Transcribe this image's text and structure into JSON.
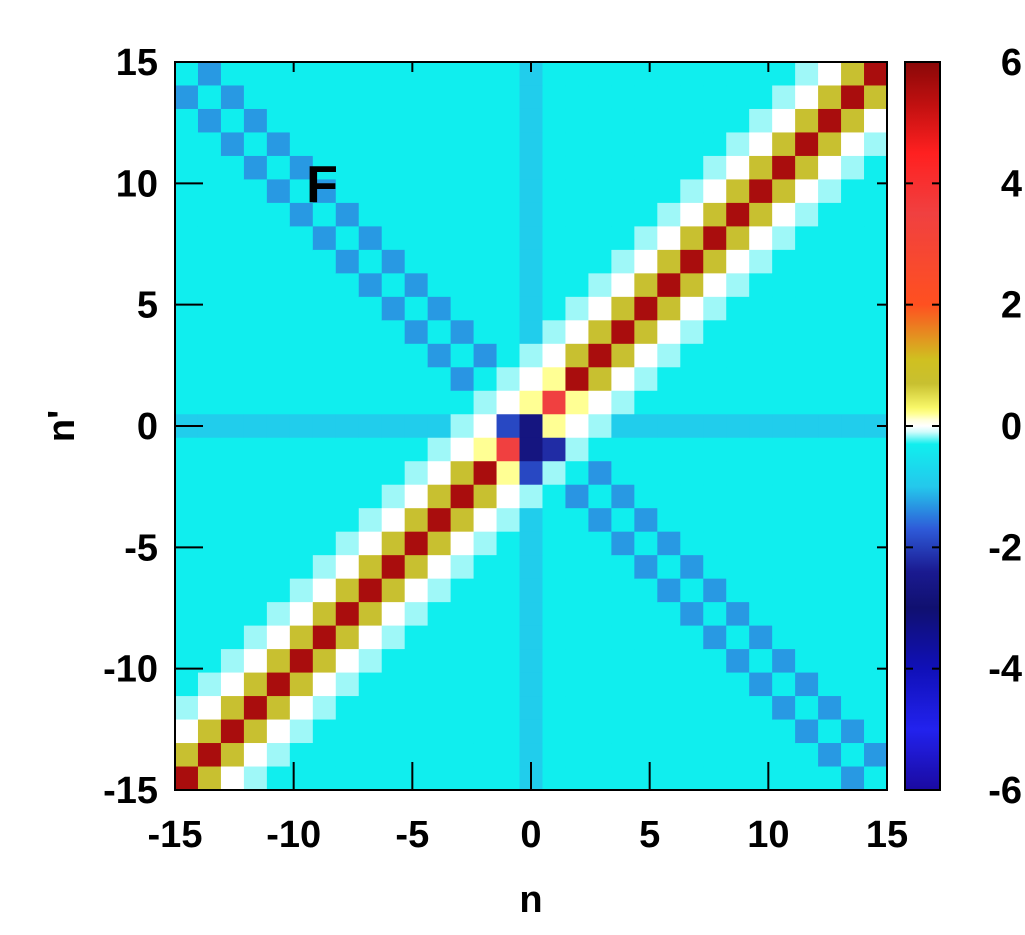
{
  "chart_data": {
    "type": "heatmap",
    "panel_label": "F",
    "xlabel": "n",
    "ylabel": "n'",
    "xlim": [
      -15,
      15
    ],
    "ylim": [
      -15,
      15
    ],
    "x_ticks": [
      "-15",
      "-10",
      "-5",
      "0",
      "5",
      "10",
      "15"
    ],
    "y_ticks": [
      "15",
      "10",
      "5",
      "0",
      "-5",
      "-10",
      "-15"
    ],
    "colorbar": {
      "range": [
        -6,
        6
      ],
      "ticks": [
        "6",
        "4",
        "2",
        "0",
        "-2",
        "-4",
        "-6"
      ],
      "stops": [
        {
          "v": -6,
          "color": "#1a0aa0"
        },
        {
          "v": -5,
          "color": "#2222ee"
        },
        {
          "v": -4,
          "color": "#1010b8"
        },
        {
          "v": -3,
          "color": "#101070"
        },
        {
          "v": -2.4,
          "color": "#1a1a90"
        },
        {
          "v": -1.7,
          "color": "#2e5ad8"
        },
        {
          "v": -1.0,
          "color": "#24c8ec"
        },
        {
          "v": -0.3,
          "color": "#10eeee"
        },
        {
          "v": -0.05,
          "color": "#ffffff"
        },
        {
          "v": 0.05,
          "color": "#ffffff"
        },
        {
          "v": 0.25,
          "color": "#ffff70"
        },
        {
          "v": 0.7,
          "color": "#c8c030"
        },
        {
          "v": 1.1,
          "color": "#d0c020"
        },
        {
          "v": 2,
          "color": "#ff5020"
        },
        {
          "v": 3.5,
          "color": "#f04040"
        },
        {
          "v": 4.5,
          "color": "#ff2020"
        },
        {
          "v": 5.3,
          "color": "#c01010"
        },
        {
          "v": 6,
          "color": "#8a0808"
        }
      ]
    },
    "value_rules": {
      "background": -0.3,
      "axis_line_value": -0.9,
      "main_diagonal_value_near_origin": 3.5,
      "main_diagonal_value_far": 5.6,
      "adjacent_diagonal_value": 0.7,
      "second_diagonal_value": 0.05,
      "third_diagonal_value": -0.15,
      "anti_diagonal_value": -1.3,
      "center_cells": [
        {
          "n": 0,
          "np": 0,
          "v": -2.7
        },
        {
          "n": -1,
          "np": 0,
          "v": -1.9
        },
        {
          "n": 0,
          "np": -1,
          "v": -2.7
        },
        {
          "n": 1,
          "np": -1,
          "v": -2.2
        },
        {
          "n": 0,
          "np": -2,
          "v": -1.9
        }
      ]
    }
  }
}
